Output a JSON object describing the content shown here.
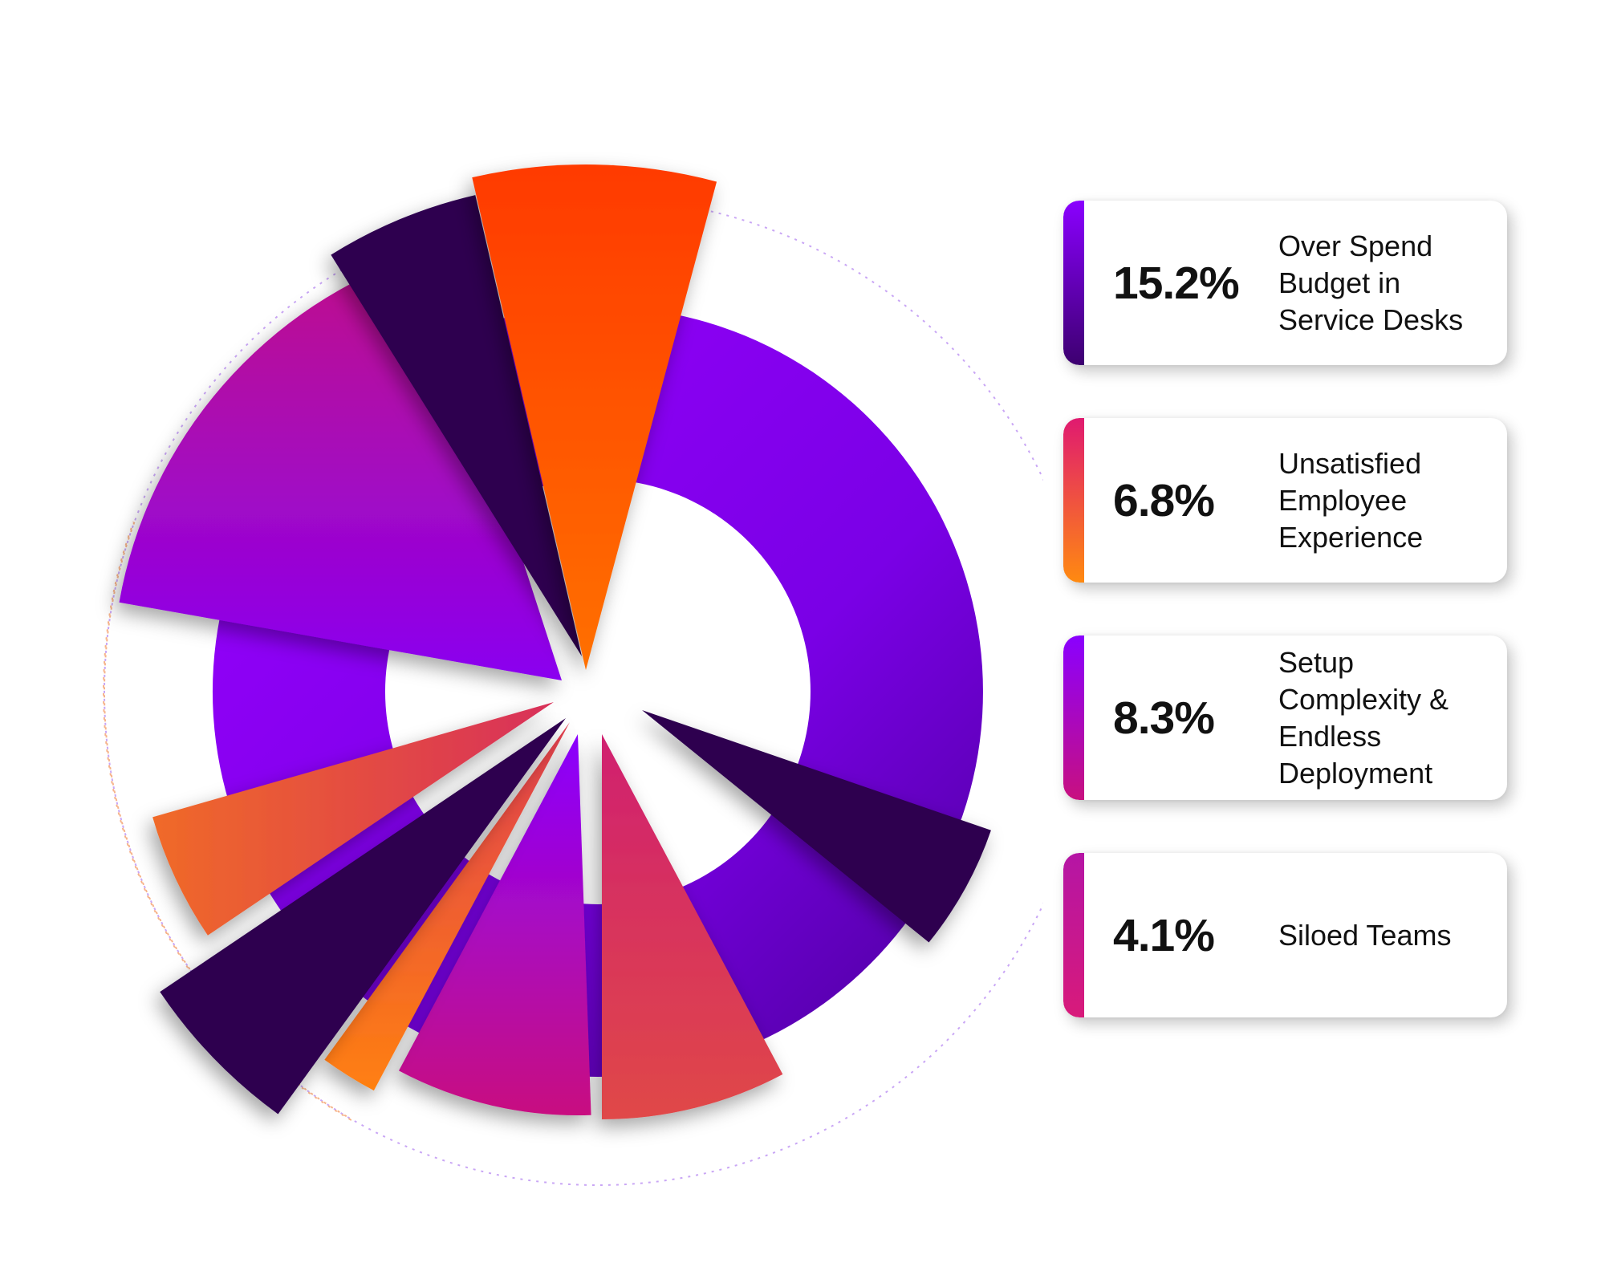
{
  "chart_data": {
    "type": "polar-area",
    "title": "",
    "items": [
      {
        "value": "15.2%",
        "label": "Over Spend Budget in Service Desks",
        "color_top": "#8a00ff",
        "color_bottom": "#3d0070"
      },
      {
        "value": "6.8%",
        "label": "Unsatisfied Employee Experience",
        "color_top": "#e01a70",
        "color_bottom": "#ff8a10"
      },
      {
        "value": "8.3%",
        "label": "Setup Complexity & Endless Deployment",
        "color_top": "#8a00ff",
        "color_bottom": "#c8107f"
      },
      {
        "value": "4.1%",
        "label": "Siloed Teams",
        "color_top": "#b515a5",
        "color_bottom": "#d81a7a"
      }
    ]
  },
  "colors": {
    "purple": "#8b00ff",
    "magenta": "#c2118f",
    "dark_purple": "#2e0450",
    "orange_red": "#ff4000",
    "orange": "#ff7a1a",
    "pink_red": "#e0335a"
  }
}
